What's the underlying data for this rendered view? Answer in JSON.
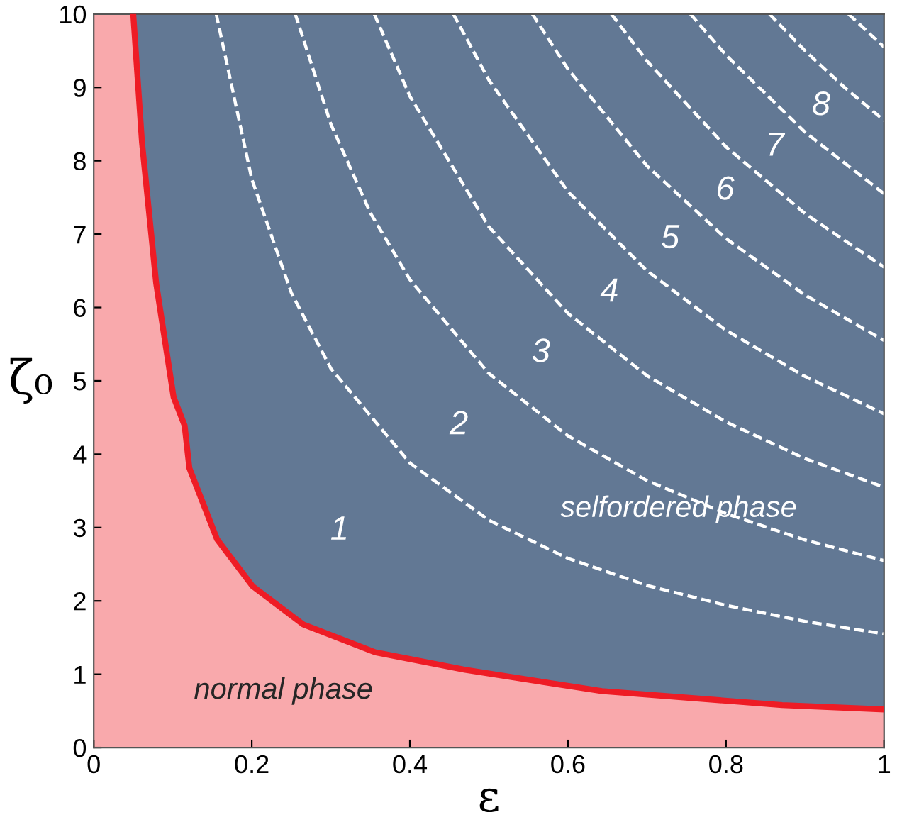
{
  "chart_data": {
    "type": "line",
    "xlabel": "ε",
    "ylabel": "ζ₀",
    "xlim": [
      0,
      1
    ],
    "ylim": [
      0,
      10
    ],
    "xticks": [
      0,
      0.2,
      0.4,
      0.6,
      0.8,
      1
    ],
    "yticks": [
      0,
      1,
      2,
      3,
      4,
      5,
      6,
      7,
      8,
      9,
      10
    ],
    "grid": false,
    "legend": false,
    "marker": "none",
    "bands": [
      {
        "axis": "x",
        "from": 0,
        "to": 1,
        "color": "#627894"
      },
      {
        "axis": "x",
        "from": 0,
        "to": 0.05,
        "color": "#f9a9ac"
      }
    ],
    "series": [
      {
        "color": "#ee1c25",
        "line_style": "solid",
        "x": [
          0.05,
          0.061,
          0.079,
          0.101,
          0.115,
          0.121,
          0.156,
          0.201,
          0.265,
          0.356,
          0.47,
          0.643,
          0.871,
          1.0
        ],
        "values": [
          10,
          8.26,
          6.33,
          4.78,
          4.39,
          3.81,
          2.84,
          2.2,
          1.68,
          1.3,
          1.06,
          0.77,
          0.58,
          0.52
        ],
        "lower": [
          0,
          0,
          0,
          0,
          0,
          0,
          0,
          0,
          0,
          0,
          0,
          0,
          0,
          0
        ],
        "upper": [
          10,
          8.26,
          6.33,
          4.78,
          4.39,
          3.81,
          2.84,
          2.2,
          1.68,
          1.3,
          1.06,
          0.77,
          0.58,
          0.52
        ]
      },
      {
        "color": "#ffffff",
        "line_style": "dashed",
        "x": [
          0.155,
          0.2,
          0.25,
          0.3,
          0.4,
          0.5,
          0.6,
          0.7,
          0.8,
          0.9,
          1.0
        ],
        "values": [
          10,
          7.75,
          6.2,
          5.17,
          3.88,
          3.1,
          2.58,
          2.21,
          1.94,
          1.72,
          1.55
        ]
      },
      {
        "color": "#ffffff",
        "line_style": "dashed",
        "x": [
          0.255,
          0.3,
          0.35,
          0.4,
          0.5,
          0.6,
          0.7,
          0.8,
          0.9,
          1.0
        ],
        "values": [
          10,
          8.5,
          7.29,
          6.38,
          5.1,
          4.25,
          3.64,
          3.19,
          2.83,
          2.55
        ]
      },
      {
        "color": "#ffffff",
        "line_style": "dashed",
        "x": [
          0.355,
          0.4,
          0.5,
          0.6,
          0.7,
          0.8,
          0.9,
          1.0
        ],
        "values": [
          10,
          8.88,
          7.1,
          5.92,
          5.07,
          4.44,
          3.94,
          3.55
        ]
      },
      {
        "color": "#ffffff",
        "line_style": "dashed",
        "x": [
          0.455,
          0.5,
          0.6,
          0.7,
          0.8,
          0.9,
          1.0
        ],
        "values": [
          10,
          9.1,
          7.58,
          6.5,
          5.69,
          5.06,
          4.55
        ]
      },
      {
        "color": "#ffffff",
        "line_style": "dashed",
        "x": [
          0.555,
          0.6,
          0.7,
          0.8,
          0.9,
          1.0
        ],
        "values": [
          10,
          9.25,
          7.93,
          6.94,
          6.17,
          5.55
        ]
      },
      {
        "color": "#ffffff",
        "line_style": "dashed",
        "x": [
          0.655,
          0.7,
          0.8,
          0.9,
          1.0
        ],
        "values": [
          10,
          9.36,
          8.19,
          7.28,
          6.55
        ]
      },
      {
        "color": "#ffffff",
        "line_style": "dashed",
        "x": [
          0.755,
          0.8,
          0.9,
          1.0
        ],
        "values": [
          10,
          9.44,
          8.39,
          7.55
        ]
      },
      {
        "color": "#ffffff",
        "line_style": "dashed",
        "x": [
          0.855,
          0.9,
          0.95,
          1.0
        ],
        "values": [
          10,
          9.5,
          9.0,
          8.55
        ]
      },
      {
        "color": "#ffffff",
        "line_style": "dashed",
        "x": [
          0.955,
          1.0
        ],
        "values": [
          10,
          9.55
        ]
      }
    ],
    "annotations": [
      "1",
      "2",
      "3",
      "4",
      "5",
      "6",
      "7",
      "8",
      "normal phase",
      "selfordered phase"
    ]
  }
}
